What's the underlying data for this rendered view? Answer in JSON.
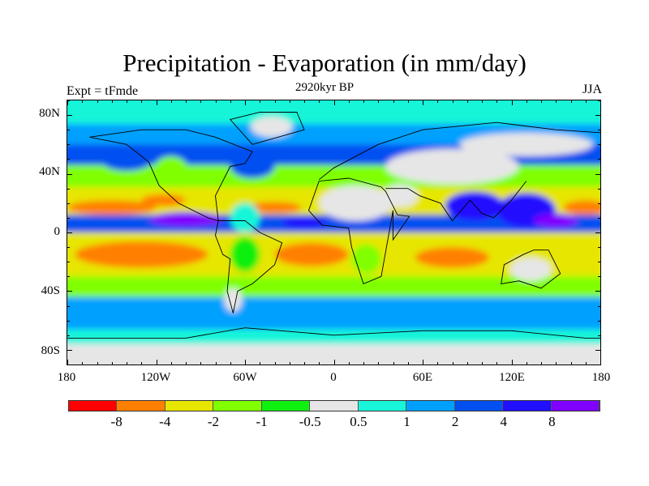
{
  "title": "Precipitation - Evaporation (in mm/day)",
  "left_string": "Expt = tFmde",
  "center_string": "2920kyr BP",
  "right_string": "JJA",
  "lat_labels": [
    "80N",
    "40N",
    "0",
    "40S",
    "80S"
  ],
  "lon_labels": [
    "180",
    "120W",
    "60W",
    "0",
    "60E",
    "120E",
    "180"
  ],
  "colorbar": {
    "colors": [
      "#ff0000",
      "#ff8000",
      "#e6e600",
      "#80ff00",
      "#10f010",
      "#e6e6e6",
      "#19f5d8",
      "#00a0ff",
      "#0050f0",
      "#2010ff",
      "#8000ff"
    ],
    "labels": [
      "-8",
      "-4",
      "-2",
      "-1",
      "-0.5",
      "0.5",
      "1",
      "2",
      "4",
      "8"
    ]
  }
}
